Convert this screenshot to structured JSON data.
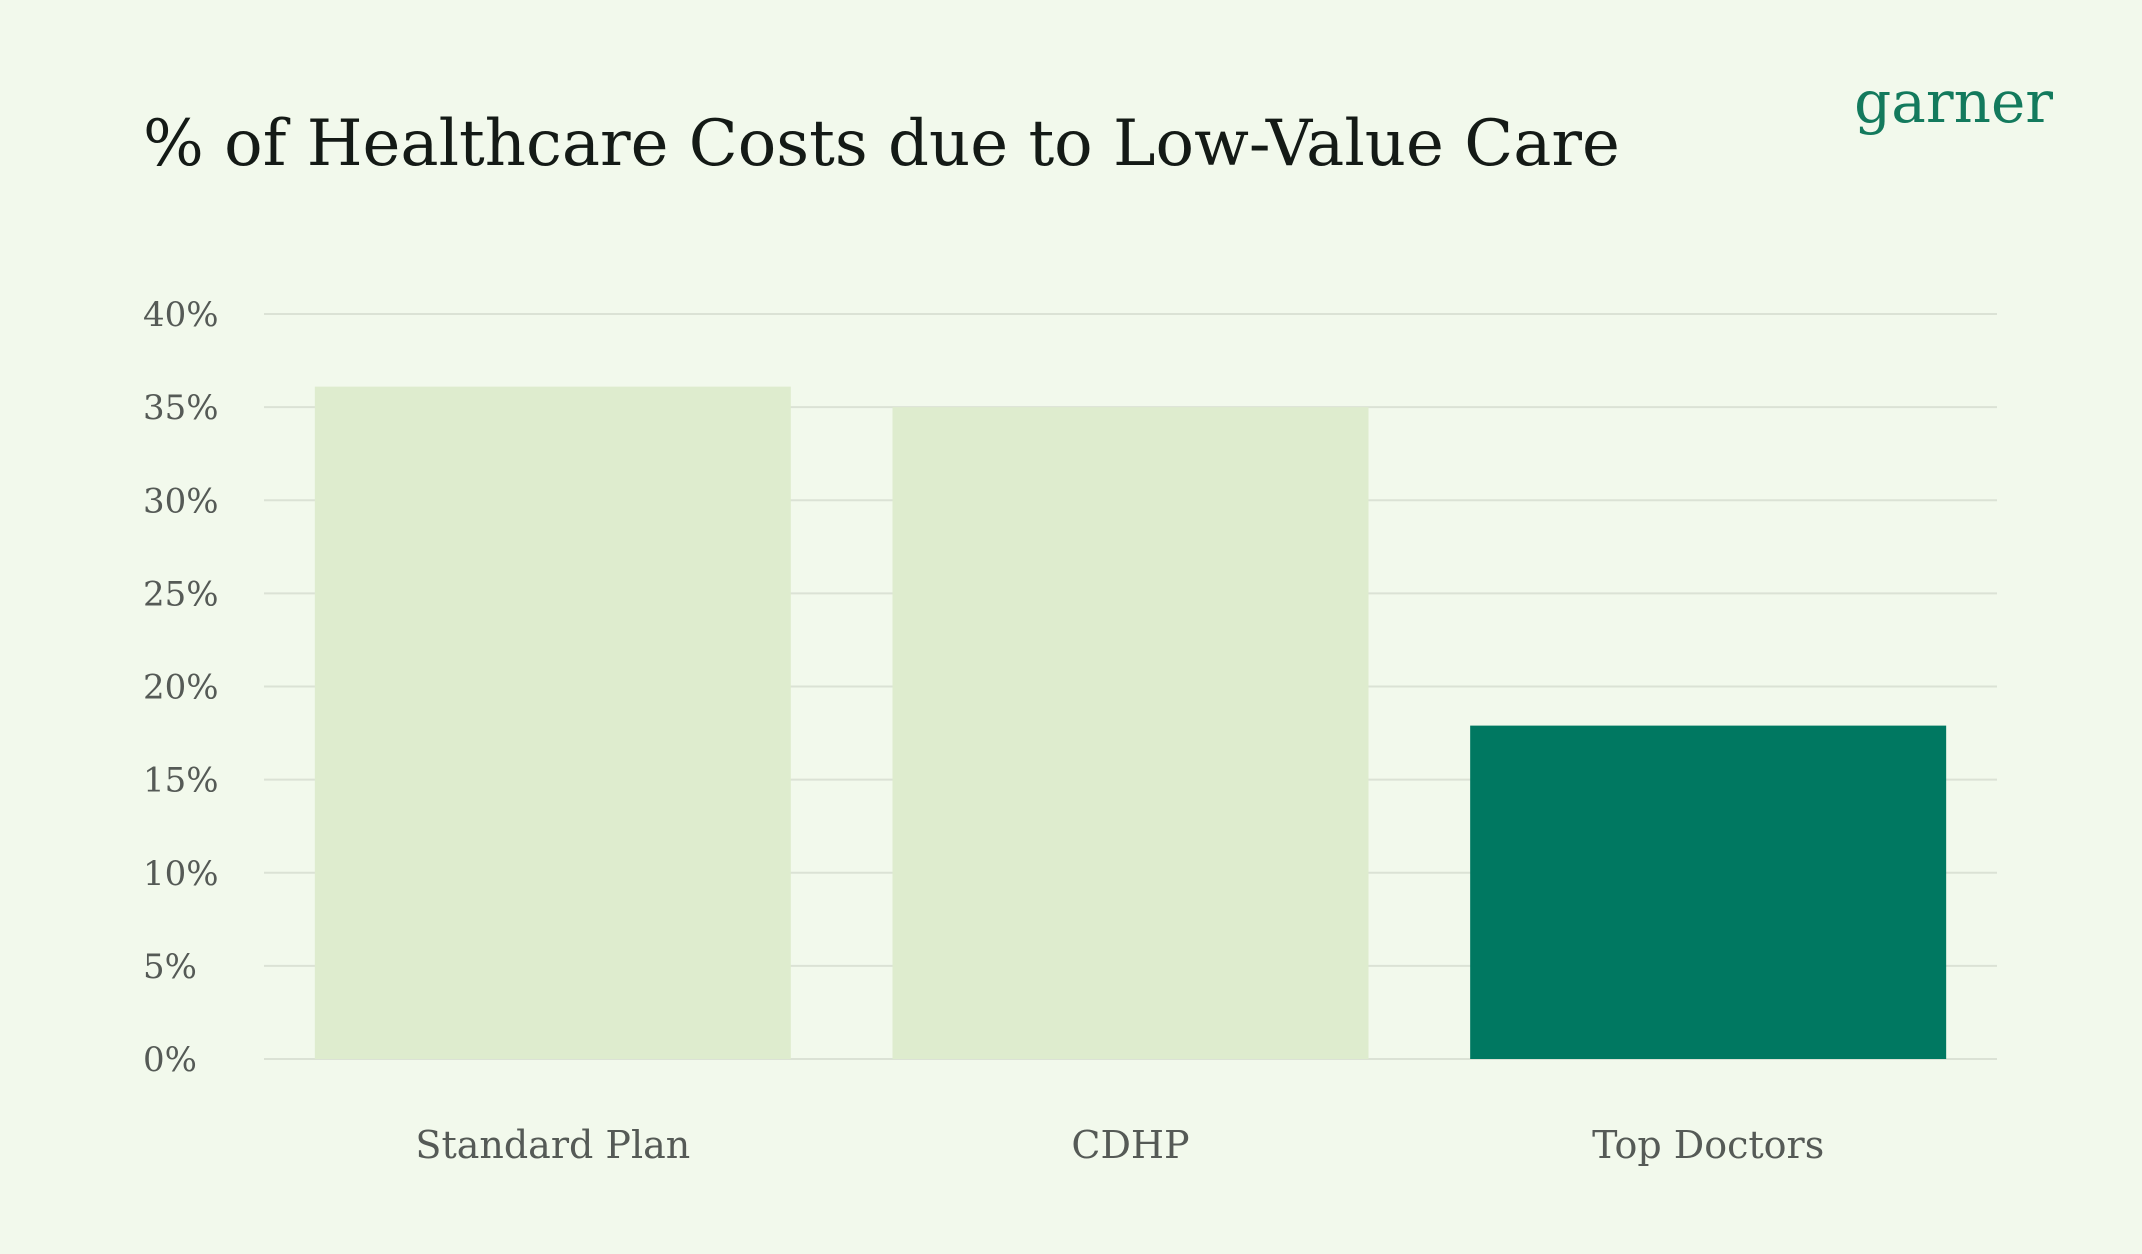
{
  "chart_data": {
    "type": "bar",
    "title": "% of Healthcare Costs due to Low-Value Care",
    "logo": "garner",
    "xlabel": "",
    "ylabel": "",
    "categories": [
      "Standard Plan",
      "CDHP",
      "Top Doctors"
    ],
    "values": [
      36.1,
      35.0,
      17.9
    ],
    "bar_colors": [
      "#deecce",
      "#deecce",
      "#007861"
    ],
    "ylim": [
      0,
      40
    ],
    "yticks": [
      0,
      5,
      10,
      15,
      20,
      25,
      30,
      35,
      40
    ],
    "ytick_labels": [
      "0%",
      "5%",
      "10%",
      "15%",
      "20%",
      "25%",
      "30%",
      "35%",
      "40%"
    ],
    "grid": true,
    "background": "#f2f9ec"
  }
}
